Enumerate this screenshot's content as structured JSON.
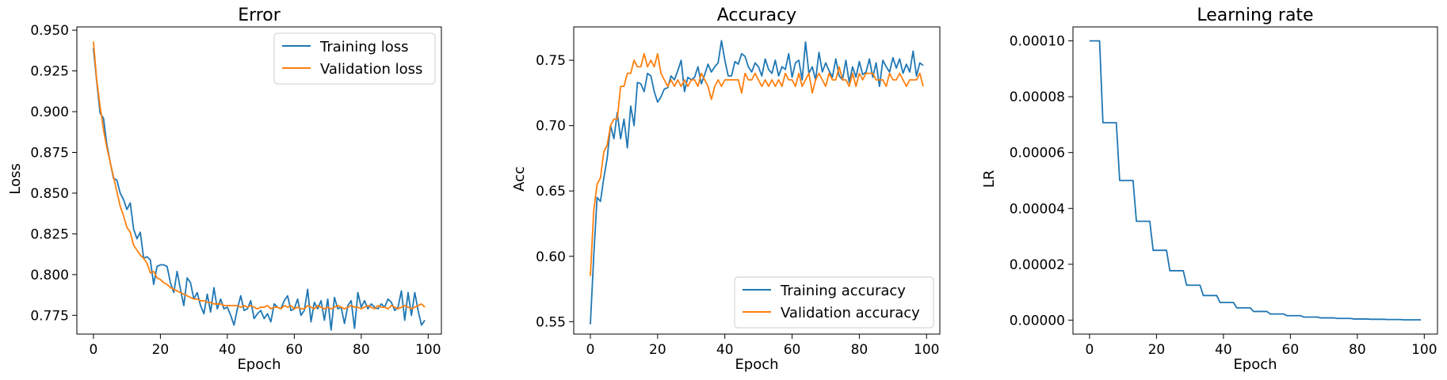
{
  "chart_data": [
    {
      "type": "line",
      "title": "Error",
      "xlabel": "Epoch",
      "ylabel": "Loss",
      "xlim": [
        -4.95,
        103.95
      ],
      "ylim": [
        0.7635,
        0.952
      ],
      "xticks": [
        0,
        20,
        40,
        60,
        80,
        100
      ],
      "xtick_labels": [
        "0",
        "20",
        "40",
        "60",
        "80",
        "100"
      ],
      "yticks": [
        0.775,
        0.8,
        0.825,
        0.85,
        0.875,
        0.9,
        0.925,
        0.95
      ],
      "ytick_labels": [
        "0.775",
        "0.800",
        "0.825",
        "0.850",
        "0.875",
        "0.900",
        "0.925",
        "0.950"
      ],
      "grid": false,
      "legend_position": "top-right",
      "series": [
        {
          "name": "Training loss",
          "color": "#1f77b4",
          "values": [
            0.939,
            0.918,
            0.899,
            0.896,
            0.88,
            0.869,
            0.859,
            0.858,
            0.85,
            0.846,
            0.84,
            0.844,
            0.828,
            0.822,
            0.826,
            0.81,
            0.811,
            0.809,
            0.794,
            0.805,
            0.806,
            0.806,
            0.805,
            0.795,
            0.789,
            0.802,
            0.791,
            0.781,
            0.798,
            0.795,
            0.785,
            0.789,
            0.781,
            0.776,
            0.788,
            0.777,
            0.792,
            0.779,
            0.785,
            0.779,
            0.78,
            0.775,
            0.769,
            0.779,
            0.787,
            0.778,
            0.779,
            0.784,
            0.773,
            0.776,
            0.778,
            0.773,
            0.776,
            0.771,
            0.782,
            0.78,
            0.779,
            0.784,
            0.787,
            0.778,
            0.779,
            0.785,
            0.775,
            0.778,
            0.791,
            0.771,
            0.783,
            0.779,
            0.784,
            0.772,
            0.785,
            0.766,
            0.786,
            0.779,
            0.78,
            0.77,
            0.781,
            0.784,
            0.767,
            0.789,
            0.78,
            0.784,
            0.779,
            0.782,
            0.78,
            0.779,
            0.782,
            0.78,
            0.785,
            0.783,
            0.778,
            0.78,
            0.79,
            0.772,
            0.789,
            0.775,
            0.789,
            0.778,
            0.769,
            0.772
          ],
          "_comment": ""
        },
        {
          "name": "Validation loss",
          "color": "#ff7f0e",
          "values": [
            0.943,
            0.919,
            0.903,
            0.889,
            0.878,
            0.869,
            0.86,
            0.851,
            0.842,
            0.836,
            0.829,
            0.826,
            0.818,
            0.815,
            0.812,
            0.81,
            0.807,
            0.801,
            0.802,
            0.798,
            0.797,
            0.795,
            0.794,
            0.792,
            0.791,
            0.79,
            0.789,
            0.788,
            0.787,
            0.786,
            0.785,
            0.785,
            0.784,
            0.784,
            0.783,
            0.783,
            0.782,
            0.782,
            0.782,
            0.781,
            0.781,
            0.781,
            0.781,
            0.781,
            0.78,
            0.781,
            0.78,
            0.781,
            0.78,
            0.779,
            0.78,
            0.78,
            0.781,
            0.779,
            0.78,
            0.78,
            0.779,
            0.781,
            0.78,
            0.781,
            0.779,
            0.78,
            0.779,
            0.779,
            0.781,
            0.78,
            0.779,
            0.781,
            0.78,
            0.779,
            0.78,
            0.779,
            0.78,
            0.781,
            0.78,
            0.779,
            0.78,
            0.781,
            0.78,
            0.78,
            0.779,
            0.78,
            0.781,
            0.78,
            0.779,
            0.781,
            0.78,
            0.78,
            0.779,
            0.781,
            0.78,
            0.779,
            0.78,
            0.781,
            0.78,
            0.779,
            0.78,
            0.781,
            0.782,
            0.78
          ]
        }
      ]
    },
    {
      "type": "line",
      "title": "Accuracy",
      "xlabel": "Epoch",
      "ylabel": "Acc",
      "xlim": [
        -4.95,
        103.95
      ],
      "ylim": [
        0.5405,
        0.7755
      ],
      "xticks": [
        0,
        20,
        40,
        60,
        80,
        100
      ],
      "xtick_labels": [
        "0",
        "20",
        "40",
        "60",
        "80",
        "100"
      ],
      "yticks": [
        0.55,
        0.6,
        0.65,
        0.7,
        0.75
      ],
      "ytick_labels": [
        "0.55",
        "0.60",
        "0.65",
        "0.70",
        "0.75"
      ],
      "grid": false,
      "legend_position": "bottom-right",
      "series": [
        {
          "name": "Training accuracy",
          "color": "#1f77b4",
          "values": [
            0.548,
            0.6,
            0.645,
            0.642,
            0.66,
            0.675,
            0.7,
            0.69,
            0.71,
            0.69,
            0.705,
            0.683,
            0.715,
            0.7,
            0.733,
            0.732,
            0.726,
            0.74,
            0.738,
            0.726,
            0.718,
            0.722,
            0.728,
            0.729,
            0.738,
            0.735,
            0.742,
            0.75,
            0.726,
            0.737,
            0.735,
            0.737,
            0.745,
            0.732,
            0.739,
            0.747,
            0.741,
            0.745,
            0.748,
            0.765,
            0.75,
            0.738,
            0.738,
            0.749,
            0.747,
            0.755,
            0.753,
            0.745,
            0.741,
            0.748,
            0.745,
            0.738,
            0.751,
            0.743,
            0.74,
            0.75,
            0.738,
            0.745,
            0.743,
            0.755,
            0.737,
            0.748,
            0.75,
            0.735,
            0.764,
            0.74,
            0.745,
            0.735,
            0.756,
            0.741,
            0.748,
            0.742,
            0.737,
            0.751,
            0.738,
            0.735,
            0.75,
            0.733,
            0.745,
            0.737,
            0.749,
            0.739,
            0.741,
            0.751,
            0.737,
            0.748,
            0.73,
            0.75,
            0.745,
            0.741,
            0.752,
            0.744,
            0.751,
            0.74,
            0.747,
            0.741,
            0.757,
            0.738,
            0.748,
            0.746
          ]
        },
        {
          "name": "Validation accuracy",
          "color": "#ff7f0e",
          "values": [
            0.585,
            0.635,
            0.655,
            0.66,
            0.68,
            0.685,
            0.7,
            0.705,
            0.705,
            0.73,
            0.73,
            0.74,
            0.74,
            0.75,
            0.745,
            0.745,
            0.755,
            0.745,
            0.75,
            0.745,
            0.755,
            0.74,
            0.735,
            0.73,
            0.735,
            0.73,
            0.735,
            0.73,
            0.735,
            0.73,
            0.735,
            0.735,
            0.73,
            0.74,
            0.735,
            0.73,
            0.72,
            0.73,
            0.735,
            0.73,
            0.735,
            0.735,
            0.735,
            0.735,
            0.735,
            0.725,
            0.74,
            0.735,
            0.735,
            0.74,
            0.735,
            0.73,
            0.735,
            0.73,
            0.735,
            0.73,
            0.735,
            0.73,
            0.74,
            0.735,
            0.735,
            0.73,
            0.74,
            0.73,
            0.735,
            0.74,
            0.725,
            0.735,
            0.74,
            0.735,
            0.73,
            0.74,
            0.735,
            0.735,
            0.745,
            0.735,
            0.735,
            0.73,
            0.74,
            0.73,
            0.74,
            0.735,
            0.74,
            0.74,
            0.74,
            0.735,
            0.735,
            0.735,
            0.73,
            0.74,
            0.735,
            0.735,
            0.74,
            0.735,
            0.73,
            0.735,
            0.735,
            0.735,
            0.74,
            0.73
          ]
        }
      ]
    },
    {
      "type": "line",
      "title": "Learning rate",
      "xlabel": "Epoch",
      "ylabel": "LR",
      "xlim": [
        -4.95,
        103.95
      ],
      "ylim": [
        -5e-06,
        0.000105
      ],
      "xticks": [
        0,
        20,
        40,
        60,
        80,
        100
      ],
      "xtick_labels": [
        "0",
        "20",
        "40",
        "60",
        "80",
        "100"
      ],
      "yticks": [
        0,
        2e-05,
        4e-05,
        6e-05,
        8e-05,
        0.0001
      ],
      "ytick_labels": [
        "0.00000",
        "0.00002",
        "0.00004",
        "0.00006",
        "0.00008",
        "0.00010"
      ],
      "grid": false,
      "series": [
        {
          "color": "#1f77b4",
          "values": [
            0.0001,
            0.0001,
            0.0001,
            0.0001,
            7.07e-05,
            7.07e-05,
            7.07e-05,
            7.07e-05,
            7.07e-05,
            5e-05,
            5e-05,
            5e-05,
            5e-05,
            5e-05,
            3.54e-05,
            3.54e-05,
            3.54e-05,
            3.54e-05,
            3.54e-05,
            2.5e-05,
            2.5e-05,
            2.5e-05,
            2.5e-05,
            2.5e-05,
            1.77e-05,
            1.77e-05,
            1.77e-05,
            1.77e-05,
            1.77e-05,
            1.25e-05,
            1.25e-05,
            1.25e-05,
            1.25e-05,
            1.25e-05,
            8.8e-06,
            8.8e-06,
            8.8e-06,
            8.8e-06,
            8.8e-06,
            6.3e-06,
            6.3e-06,
            6.3e-06,
            6.3e-06,
            6.3e-06,
            4.4e-06,
            4.4e-06,
            4.4e-06,
            4.4e-06,
            4.4e-06,
            3.1e-06,
            3.1e-06,
            3.1e-06,
            3.1e-06,
            3.1e-06,
            2.2e-06,
            2.2e-06,
            2.2e-06,
            2.2e-06,
            2.2e-06,
            1.6e-06,
            1.6e-06,
            1.6e-06,
            1.6e-06,
            1.6e-06,
            1.1e-06,
            1.1e-06,
            1.1e-06,
            1.1e-06,
            1.1e-06,
            8e-07,
            8e-07,
            8e-07,
            8e-07,
            8e-07,
            6e-07,
            6e-07,
            6e-07,
            6e-07,
            6e-07,
            4e-07,
            4e-07,
            4e-07,
            4e-07,
            4e-07,
            3e-07,
            3e-07,
            3e-07,
            3e-07,
            3e-07,
            2e-07,
            2e-07,
            2e-07,
            2e-07,
            2e-07,
            1e-07,
            1e-07,
            1e-07,
            1e-07,
            1e-07,
            1e-07
          ]
        }
      ]
    }
  ]
}
